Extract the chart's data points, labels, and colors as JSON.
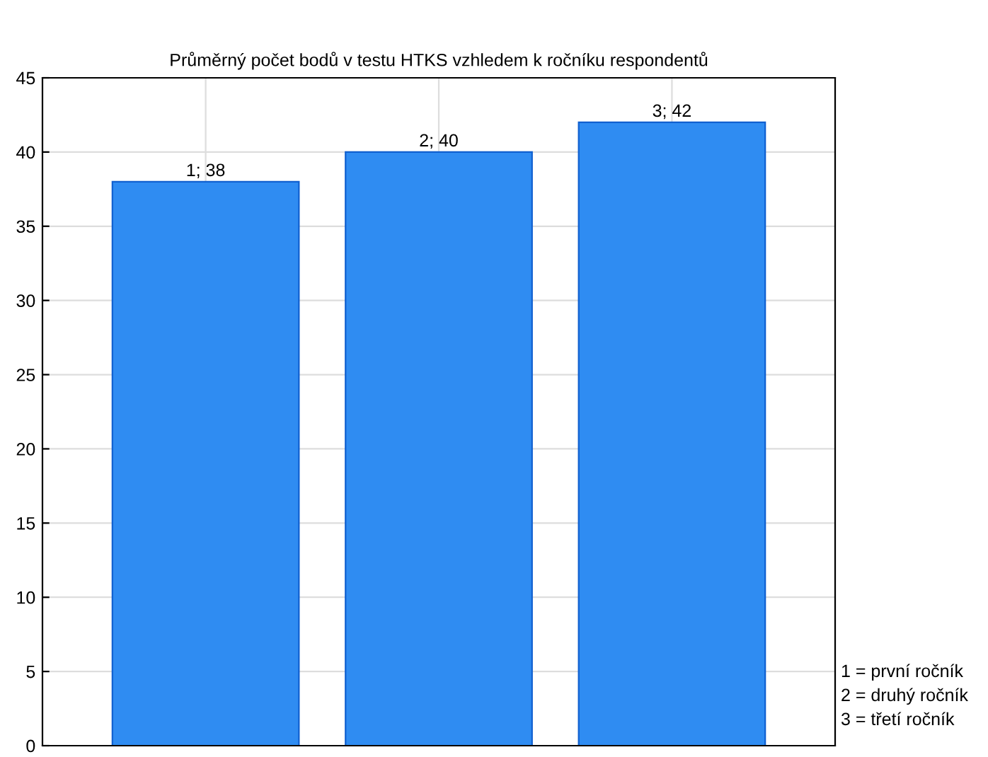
{
  "chart_data": {
    "type": "bar",
    "title": "Průměrný počet bodů v testu HTKS vzhledem k ročníku respondentů",
    "categories": [
      null,
      null,
      null
    ],
    "values": [
      38,
      40,
      42
    ],
    "color": "#2f8cf2",
    "value_labels": [
      "1; 38",
      "2; 40",
      "3; 42"
    ],
    "ylim": [
      0,
      45
    ],
    "yticks": [
      0,
      5,
      10,
      15,
      20,
      25,
      30,
      35,
      40,
      45
    ],
    "grid": true,
    "annotations": [
      "1 = první ročník",
      "2 = druhý ročník",
      "3 = třetí ročník"
    ]
  }
}
